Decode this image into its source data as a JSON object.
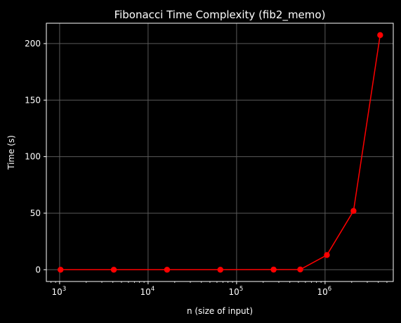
{
  "chart_data": {
    "type": "line",
    "title": "Fibonacci Time Complexity (fib2_memo)",
    "xlabel": "n (size of input)",
    "ylabel": "Time (s)",
    "x_scale": "log",
    "x_ticks": [
      {
        "value": 1000,
        "base": "10",
        "exp": "3"
      },
      {
        "value": 10000,
        "base": "10",
        "exp": "4"
      },
      {
        "value": 100000,
        "base": "10",
        "exp": "5"
      },
      {
        "value": 1000000,
        "base": "10",
        "exp": "6"
      }
    ],
    "y_ticks": [
      {
        "value": 0,
        "label": "0"
      },
      {
        "value": 50,
        "label": "50"
      },
      {
        "value": 100,
        "label": "100"
      },
      {
        "value": 150,
        "label": "150"
      },
      {
        "value": 200,
        "label": "200"
      }
    ],
    "xlim": [
      708,
      5900000
    ],
    "ylim": [
      -10.4,
      218
    ],
    "grid": true,
    "series": [
      {
        "color": "#ff0000",
        "marker": "circle",
        "x": [
          1024,
          4096,
          16384,
          65536,
          262144,
          524288,
          1048576,
          2097152,
          4194304
        ],
        "y": [
          0.0,
          0.0,
          0.0,
          0.0,
          0.1,
          0.2,
          13.0,
          52.0,
          207.5
        ]
      }
    ],
    "colors": {
      "background": "#000000",
      "axes": "#ffffff",
      "grid": "#5a5a5a",
      "line": "#ff0000"
    }
  }
}
